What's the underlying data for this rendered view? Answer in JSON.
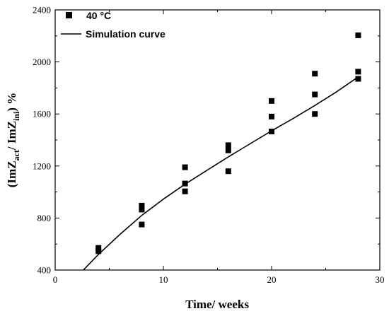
{
  "chart_data": {
    "type": "scatter",
    "xlabel": "Time/ weeks",
    "ylabel": {
      "prefix": "(ImZ",
      "sub1": "act",
      "middle": "/ ImZ",
      "sub2": "ini",
      "suffix": ") %"
    },
    "xlim": [
      0,
      30
    ],
    "ylim": [
      400,
      2400
    ],
    "xticks": [
      0,
      10,
      20,
      30
    ],
    "yticks": [
      400,
      800,
      1200,
      1600,
      2000,
      2400
    ],
    "grid": false,
    "legend": {
      "placement": "top-left",
      "entries": [
        {
          "label": "40 °C",
          "marker": "square"
        },
        {
          "label": "Simulation curve",
          "marker": "line"
        }
      ]
    },
    "series": [
      {
        "name": "40 °C",
        "type": "scatter",
        "marker": "square",
        "points": [
          {
            "x": 4,
            "y": 570
          },
          {
            "x": 4,
            "y": 545
          },
          {
            "x": 8,
            "y": 895
          },
          {
            "x": 8,
            "y": 865
          },
          {
            "x": 8,
            "y": 750
          },
          {
            "x": 12,
            "y": 1190
          },
          {
            "x": 12,
            "y": 1065
          },
          {
            "x": 12,
            "y": 1005
          },
          {
            "x": 16,
            "y": 1360
          },
          {
            "x": 16,
            "y": 1320
          },
          {
            "x": 16,
            "y": 1160
          },
          {
            "x": 20,
            "y": 1700
          },
          {
            "x": 20,
            "y": 1580
          },
          {
            "x": 20,
            "y": 1465
          },
          {
            "x": 24,
            "y": 1910
          },
          {
            "x": 24,
            "y": 1750
          },
          {
            "x": 24,
            "y": 1600
          },
          {
            "x": 28,
            "y": 2205
          },
          {
            "x": 28,
            "y": 1925
          },
          {
            "x": 28,
            "y": 1870
          }
        ]
      },
      {
        "name": "Simulation curve",
        "type": "line",
        "points": [
          {
            "x": 2.6,
            "y": 400
          },
          {
            "x": 4,
            "y": 520
          },
          {
            "x": 6,
            "y": 675
          },
          {
            "x": 8,
            "y": 820
          },
          {
            "x": 10,
            "y": 945
          },
          {
            "x": 12,
            "y": 1060
          },
          {
            "x": 14,
            "y": 1165
          },
          {
            "x": 16,
            "y": 1270
          },
          {
            "x": 18,
            "y": 1370
          },
          {
            "x": 20,
            "y": 1470
          },
          {
            "x": 22,
            "y": 1565
          },
          {
            "x": 24,
            "y": 1665
          },
          {
            "x": 26,
            "y": 1770
          },
          {
            "x": 28,
            "y": 1885
          }
        ]
      }
    ]
  }
}
